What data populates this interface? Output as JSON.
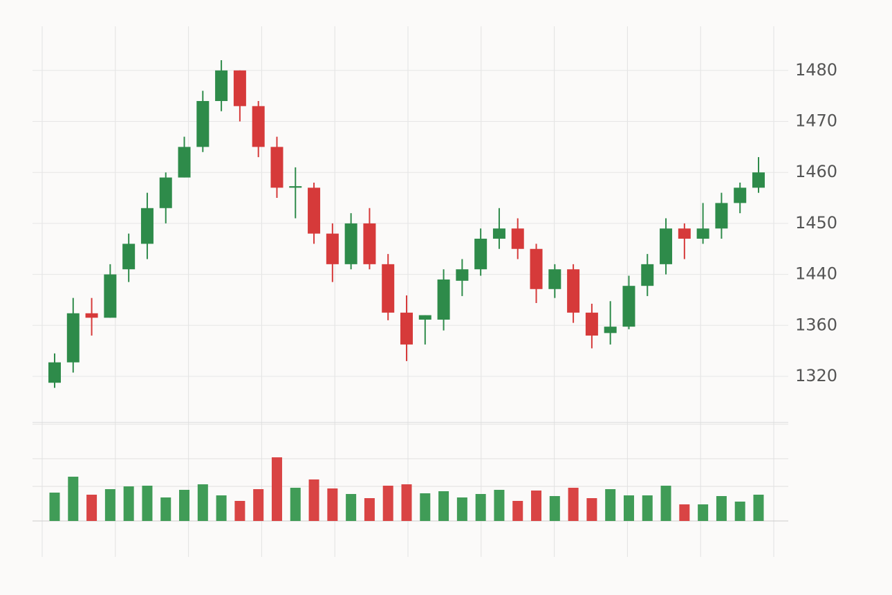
{
  "chart_data": {
    "type": "candlestick",
    "y_scale": "tick-spaced",
    "ylim": [
      1284,
      1488
    ],
    "yticks": [
      1320,
      1360,
      1440,
      1450,
      1460,
      1470,
      1480
    ],
    "grid": true,
    "up_color": "#2e8b4a",
    "down_color": "#d63a3a",
    "volume_up_color": "#409c57",
    "volume_down_color": "#d94444",
    "open": [
      1315,
      1331,
      1379,
      1372,
      1441,
      1446,
      1453,
      1459,
      1465,
      1474,
      1480,
      1473,
      1465,
      1457,
      1457,
      1448,
      1442,
      1450,
      1442,
      1380,
      1369,
      1369,
      1430,
      1441,
      1447,
      1449,
      1445,
      1417,
      1441,
      1380,
      1354,
      1359,
      1422,
      1442,
      1449,
      1447,
      1449,
      1454,
      1457
    ],
    "high": [
      1338,
      1403,
      1403,
      1442,
      1448,
      1456,
      1460,
      1467,
      1476,
      1482,
      1480,
      1474,
      1467,
      1461,
      1458,
      1450,
      1452,
      1453,
      1444,
      1407,
      1376,
      1441,
      1443,
      1449,
      1453,
      1451,
      1446,
      1442,
      1442,
      1394,
      1398,
      1438,
      1444,
      1451,
      1450,
      1454,
      1456,
      1458,
      1463
    ],
    "low": [
      1311,
      1323,
      1352,
      1372,
      1428,
      1443,
      1450,
      1459,
      1464,
      1472,
      1470,
      1463,
      1455,
      1451,
      1446,
      1428,
      1441,
      1441,
      1368,
      1332,
      1345,
      1356,
      1406,
      1438,
      1445,
      1443,
      1395,
      1403,
      1364,
      1342,
      1345,
      1357,
      1406,
      1440,
      1443,
      1446,
      1447,
      1452,
      1456
    ],
    "close": [
      1331,
      1379,
      1372,
      1440,
      1446,
      1453,
      1459,
      1465,
      1474,
      1480,
      1473,
      1465,
      1457,
      1457.3,
      1448,
      1442,
      1450,
      1442,
      1380,
      1345,
      1376,
      1432,
      1441,
      1447,
      1449,
      1445,
      1417,
      1441,
      1380,
      1352,
      1359,
      1422,
      1442,
      1449,
      1447,
      1449,
      1454,
      1457,
      1460
    ],
    "volume": [
      41,
      64,
      38,
      46,
      50,
      51,
      34,
      45,
      53,
      37,
      29,
      46,
      92,
      48,
      60,
      47,
      39,
      33,
      51,
      53,
      40,
      43,
      34,
      39,
      45,
      29,
      44,
      36,
      48,
      33,
      46,
      37,
      37,
      51,
      24,
      24,
      36,
      28,
      38
    ],
    "y2lim": [
      0,
      140
    ],
    "volume_gridlines": [
      50,
      90,
      140
    ]
  }
}
